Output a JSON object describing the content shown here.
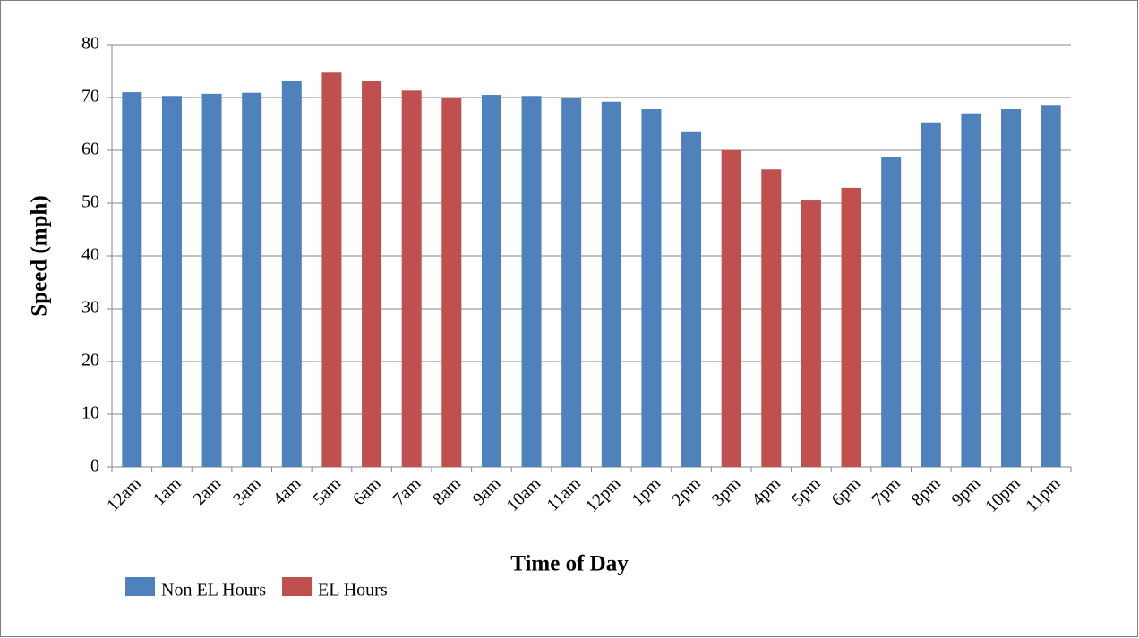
{
  "chart_data": {
    "type": "bar",
    "x_label": "Time of Day",
    "y_label": "Speed (mph)",
    "categories": [
      "12am",
      "1am",
      "2am",
      "3am",
      "4am",
      "5am",
      "6am",
      "7am",
      "8am",
      "9am",
      "10am",
      "11am",
      "12pm",
      "1pm",
      "2pm",
      "3pm",
      "4pm",
      "5pm",
      "6pm",
      "7pm",
      "8pm",
      "9pm",
      "10pm",
      "11pm"
    ],
    "series": [
      {
        "name": "Non EL Hours",
        "color": "#4f81bd",
        "values": [
          71.0,
          70.3,
          70.7,
          70.9,
          73.1,
          null,
          null,
          null,
          null,
          70.5,
          70.3,
          70.0,
          69.2,
          67.8,
          63.6,
          null,
          null,
          null,
          null,
          58.8,
          65.3,
          67.0,
          67.8,
          68.6
        ]
      },
      {
        "name": "EL Hours",
        "color": "#c0504d",
        "values": [
          null,
          null,
          null,
          null,
          null,
          74.7,
          73.2,
          71.3,
          70.0,
          null,
          null,
          null,
          null,
          null,
          null,
          60.0,
          56.4,
          50.5,
          52.9,
          null,
          null,
          null,
          null,
          null
        ]
      }
    ],
    "ylim": [
      0,
      80
    ],
    "yticks": [
      0,
      10,
      20,
      30,
      40,
      50,
      60,
      70,
      80
    ],
    "grid": true
  }
}
